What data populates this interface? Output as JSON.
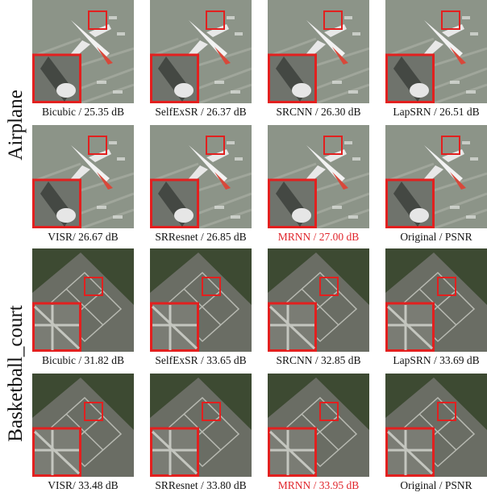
{
  "groups": [
    {
      "label": "Airplane",
      "rows": [
        [
          {
            "caption": "Bicubic / 25.35 dB",
            "highlight": false
          },
          {
            "caption": "SelfExSR / 26.37 dB",
            "highlight": false
          },
          {
            "caption": "SRCNN / 26.30 dB",
            "highlight": false
          },
          {
            "caption": "LapSRN / 26.51 dB",
            "highlight": false
          }
        ],
        [
          {
            "caption": "VISR/ 26.67 dB",
            "highlight": false
          },
          {
            "caption": "SRResnet / 26.85 dB",
            "highlight": false
          },
          {
            "caption": "MRNN / 27.00 dB",
            "highlight": true
          },
          {
            "caption": "Original / PSNR",
            "highlight": false
          }
        ]
      ]
    },
    {
      "label": "Basketball_court",
      "rows": [
        [
          {
            "caption": "Bicubic / 31.82 dB",
            "highlight": false
          },
          {
            "caption": "SelfExSR / 33.65 dB",
            "highlight": false
          },
          {
            "caption": "SRCNN / 32.85 dB",
            "highlight": false
          },
          {
            "caption": "LapSRN / 33.69 dB",
            "highlight": false
          }
        ],
        [
          {
            "caption": "VISR/ 33.48 dB",
            "highlight": false
          },
          {
            "caption": "SRResnet / 33.80 dB",
            "highlight": false
          },
          {
            "caption": "MRNN / 33.95 dB",
            "highlight": true
          },
          {
            "caption": "Original / PSNR",
            "highlight": false
          }
        ]
      ]
    }
  ]
}
